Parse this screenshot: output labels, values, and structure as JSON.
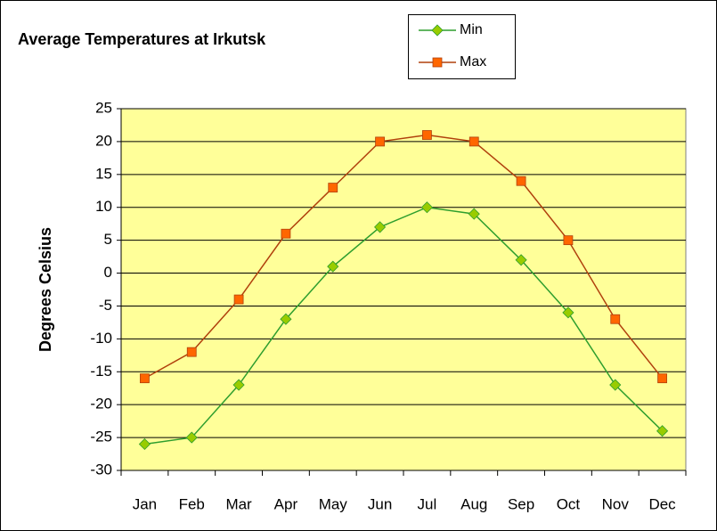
{
  "chart_data": {
    "type": "line",
    "title": "Average Temperatures at Irkutsk",
    "ylabel": "Degrees Celsius",
    "categories": [
      "Jan",
      "Feb",
      "Mar",
      "Apr",
      "May",
      "Jun",
      "Jul",
      "Aug",
      "Sep",
      "Oct",
      "Nov",
      "Dec"
    ],
    "series": [
      {
        "name": "Min",
        "color": "#2e9e2e",
        "marker_color": "#99cc00",
        "marker": "diamond",
        "values": [
          -26,
          -25,
          -17,
          -7,
          1,
          7,
          10,
          9,
          2,
          -6,
          -17,
          -24
        ]
      },
      {
        "name": "Max",
        "color": "#b0400c",
        "marker_color": "#ff6600",
        "marker": "square",
        "values": [
          -16,
          -12,
          -4,
          6,
          13,
          20,
          21,
          20,
          14,
          5,
          -7,
          -16
        ]
      }
    ],
    "ylim": [
      -30,
      25
    ],
    "yticks": [
      -30,
      -25,
      -20,
      -15,
      -10,
      -5,
      0,
      5,
      10,
      15,
      20,
      25
    ],
    "grid": true,
    "background": "#ffff99"
  }
}
